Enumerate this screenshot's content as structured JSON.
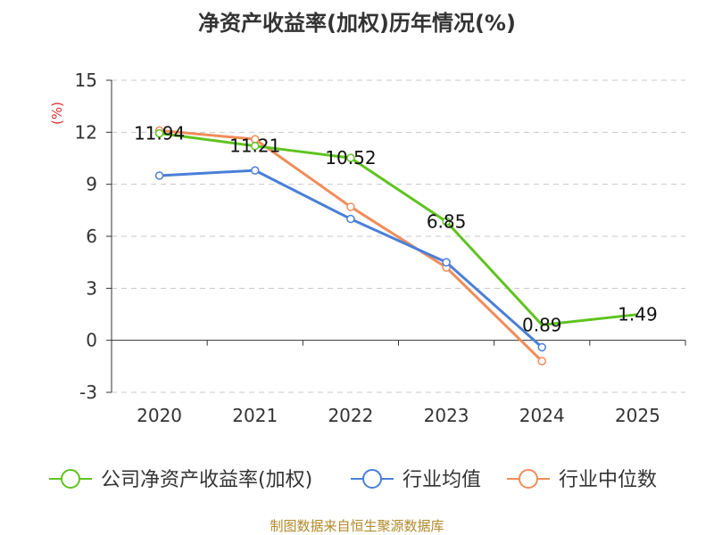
{
  "chart_data": {
    "type": "line",
    "title": "净资产收益率(加权)历年情况(%)",
    "ylabel": "(%)",
    "categories": [
      "2020",
      "2021",
      "2022",
      "2023",
      "2024",
      "2025"
    ],
    "ylim": [
      -3,
      15
    ],
    "yticks": [
      15,
      12,
      9,
      6,
      3,
      0,
      -3
    ],
    "grid": true,
    "legend_position": "bottom",
    "series": [
      {
        "name": "公司净资产收益率(加权)",
        "color": "#5fc31f",
        "values": [
          11.94,
          11.21,
          10.52,
          6.85,
          0.89,
          1.49
        ],
        "labels": [
          "11.94",
          "11.21",
          "10.52",
          "6.85",
          "0.89",
          "1.49"
        ],
        "show_marker": [
          true,
          true,
          true,
          true,
          false,
          false
        ]
      },
      {
        "name": "行业均值",
        "color": "#4a7fd8",
        "values": [
          9.5,
          9.8,
          7.0,
          4.5,
          -0.4,
          null
        ]
      },
      {
        "name": "行业中位数",
        "color": "#f08c5a",
        "values": [
          12.1,
          11.6,
          7.7,
          4.2,
          -1.2,
          null
        ]
      }
    ],
    "source": "制图数据来自恒生聚源数据库"
  }
}
